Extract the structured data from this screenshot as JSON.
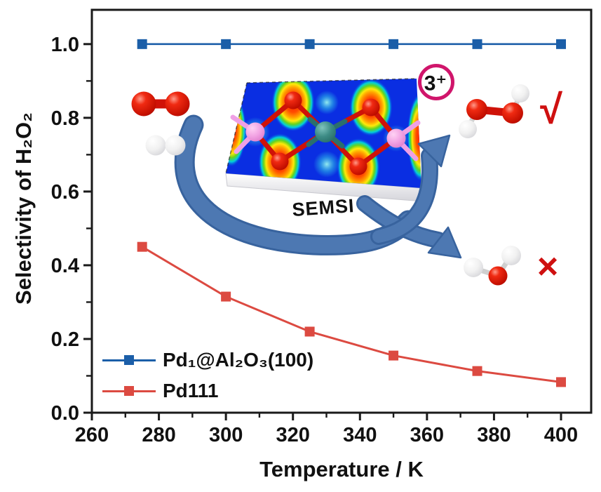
{
  "chart_data": {
    "type": "line",
    "title": "",
    "xlabel": "Temperature / K",
    "ylabel": "Selectivity of H₂O₂",
    "x": [
      275,
      300,
      325,
      350,
      375,
      400
    ],
    "series": [
      {
        "name": "Pd₁@Al₂O₃(100)",
        "color": "#1b5ea8",
        "marker": "square",
        "values": [
          1.0,
          1.0,
          1.0,
          1.0,
          1.0,
          1.0
        ]
      },
      {
        "name": "Pd111",
        "color": "#dc4a41",
        "marker": "square",
        "values": [
          0.45,
          0.315,
          0.22,
          0.155,
          0.113,
          0.083
        ]
      }
    ],
    "xlim": [
      260,
      409
    ],
    "ylim": [
      0,
      1.093
    ],
    "xticks": [
      260,
      280,
      300,
      320,
      340,
      360,
      380,
      400
    ],
    "yticks": [
      "0.0",
      "0.2",
      "0.4",
      "0.6",
      "0.8",
      "1.0"
    ],
    "x_minor_step": 10,
    "y_minor_step": 0.1,
    "grid": false,
    "legend_position": "lower-left"
  },
  "inset": {
    "slab_label": "SEMSI",
    "charge_badge": "3⁺",
    "check_mark": "√",
    "cross_mark": "×",
    "molecules": [
      "O2",
      "H2",
      "H2O2",
      "H2O"
    ],
    "colors": {
      "arrow_fill": "#4d78b2",
      "arrow_edge": "#38639e",
      "badge_ring": "#d0156b",
      "mark_red": "#cf1010"
    }
  }
}
